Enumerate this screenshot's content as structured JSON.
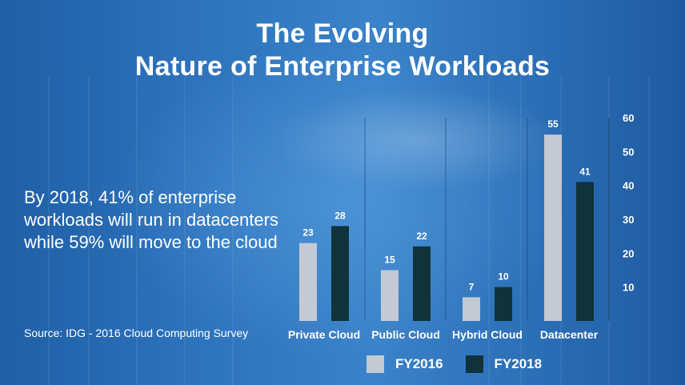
{
  "title": {
    "line1": "The Evolving",
    "line2": "Nature of Enterprise Workloads"
  },
  "statement": "By 2018, 41% of enterprise workloads will run in datacenters while 59% will move to the cloud",
  "source": "Source: IDG - 2016 Cloud Computing Survey",
  "colors": {
    "fy2016": "#c3cad3",
    "fy2018": "#10323a",
    "text": "#ffffff"
  },
  "chart_data": {
    "type": "bar",
    "categories": [
      "Private Cloud",
      "Public Cloud",
      "Hybrid Cloud",
      "Datacenter"
    ],
    "series": [
      {
        "name": "FY2016",
        "values": [
          23,
          15,
          7,
          55
        ]
      },
      {
        "name": "FY2018",
        "values": [
          28,
          22,
          10,
          41
        ]
      }
    ],
    "title": "",
    "xlabel": "",
    "ylabel": "",
    "ylim": [
      0,
      60
    ],
    "yticks": [
      10,
      20,
      30,
      40,
      50,
      60
    ],
    "y_axis_side": "right",
    "data_labels": true,
    "legend_position": "bottom"
  }
}
